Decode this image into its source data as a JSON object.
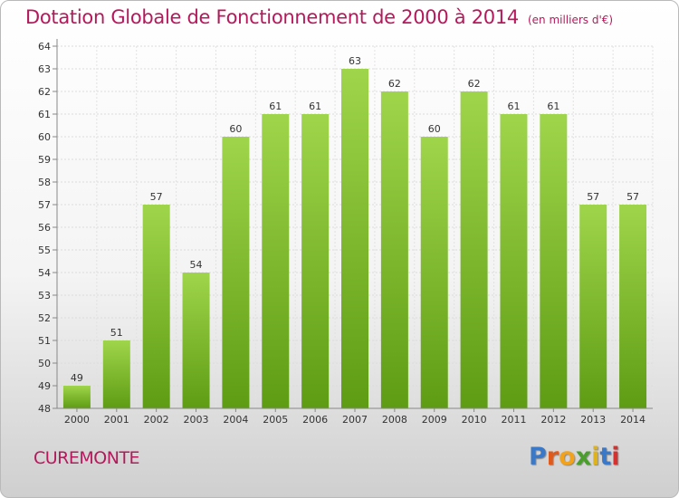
{
  "chart_data": {
    "type": "bar",
    "title": "Dotation Globale de Fonctionnement de 2000 à 2014",
    "subtitle": "(en milliers d'€)",
    "categories": [
      "2000",
      "2001",
      "2002",
      "2003",
      "2004",
      "2005",
      "2006",
      "2007",
      "2008",
      "2009",
      "2010",
      "2011",
      "2012",
      "2013",
      "2014"
    ],
    "values": [
      49,
      51,
      57,
      54,
      60,
      61,
      61,
      63,
      62,
      60,
      62,
      61,
      61,
      57,
      57
    ],
    "ylim": [
      48,
      64
    ],
    "yticks": [
      48,
      49,
      50,
      51,
      52,
      53,
      54,
      55,
      56,
      57,
      58,
      59,
      60,
      61,
      62,
      63,
      64
    ],
    "xlabel": "",
    "ylabel": "",
    "grid": true,
    "bar_color": "#7cbc2a"
  },
  "commune": "CUREMONTE",
  "logo": {
    "letters": [
      "P",
      "r",
      "o",
      "x",
      "i",
      "t",
      "i"
    ],
    "colors": [
      "#3a78c9",
      "#e05a1c",
      "#f2a31b",
      "#4a9e2b",
      "#e0b21a",
      "#3a78c9",
      "#d6312f"
    ]
  }
}
